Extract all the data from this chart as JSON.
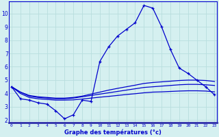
{
  "xlabel": "Graphe des températures (°c)",
  "background_color": "#d5f0f0",
  "line_color": "#0000cc",
  "grid_color": "#b8dede",
  "x_ticks": [
    0,
    1,
    2,
    3,
    4,
    5,
    6,
    7,
    8,
    9,
    10,
    11,
    12,
    13,
    14,
    15,
    16,
    17,
    18,
    19,
    20,
    21,
    22,
    23
  ],
  "y_ticks": [
    2,
    3,
    4,
    5,
    6,
    7,
    8,
    9,
    10
  ],
  "ylim": [
    1.8,
    10.9
  ],
  "xlim": [
    -0.3,
    23.3
  ],
  "series": {
    "main": {
      "x": [
        0,
        1,
        2,
        3,
        4,
        5,
        6,
        7,
        8,
        9,
        10,
        11,
        12,
        13,
        14,
        15,
        16,
        17,
        18,
        19,
        20,
        21,
        22,
        23
      ],
      "y": [
        4.5,
        3.6,
        3.5,
        3.3,
        3.2,
        2.7,
        2.1,
        2.4,
        3.5,
        3.4,
        6.4,
        7.5,
        8.3,
        8.8,
        9.3,
        10.6,
        10.4,
        9.0,
        7.3,
        5.9,
        5.5,
        5.0,
        4.5,
        3.9
      ]
    },
    "line2": {
      "x": [
        0,
        1,
        2,
        3,
        4,
        5,
        6,
        7,
        8,
        9,
        10,
        11,
        12,
        13,
        14,
        15,
        16,
        17,
        18,
        19,
        20,
        21,
        22,
        23
      ],
      "y": [
        4.5,
        4.1,
        3.8,
        3.7,
        3.65,
        3.6,
        3.6,
        3.65,
        3.75,
        3.85,
        3.95,
        4.05,
        4.15,
        4.25,
        4.35,
        4.45,
        4.5,
        4.55,
        4.6,
        4.65,
        4.68,
        4.68,
        4.65,
        4.6
      ]
    },
    "line3": {
      "x": [
        0,
        1,
        2,
        3,
        4,
        5,
        6,
        7,
        8,
        9,
        10,
        11,
        12,
        13,
        14,
        15,
        16,
        17,
        18,
        19,
        20,
        21,
        22,
        23
      ],
      "y": [
        4.5,
        4.1,
        3.85,
        3.75,
        3.7,
        3.65,
        3.65,
        3.7,
        3.8,
        3.95,
        4.1,
        4.25,
        4.38,
        4.5,
        4.62,
        4.75,
        4.82,
        4.87,
        4.92,
        4.97,
        5.0,
        5.0,
        4.97,
        4.9
      ]
    },
    "line4": {
      "x": [
        0,
        1,
        2,
        3,
        4,
        5,
        6,
        7,
        8,
        9,
        10,
        11,
        12,
        13,
        14,
        15,
        16,
        17,
        18,
        19,
        20,
        21,
        22,
        23
      ],
      "y": [
        4.5,
        4.0,
        3.7,
        3.6,
        3.55,
        3.5,
        3.5,
        3.52,
        3.58,
        3.65,
        3.72,
        3.78,
        3.85,
        3.92,
        3.98,
        4.05,
        4.1,
        4.12,
        4.15,
        4.18,
        4.2,
        4.2,
        4.18,
        4.12
      ]
    }
  }
}
